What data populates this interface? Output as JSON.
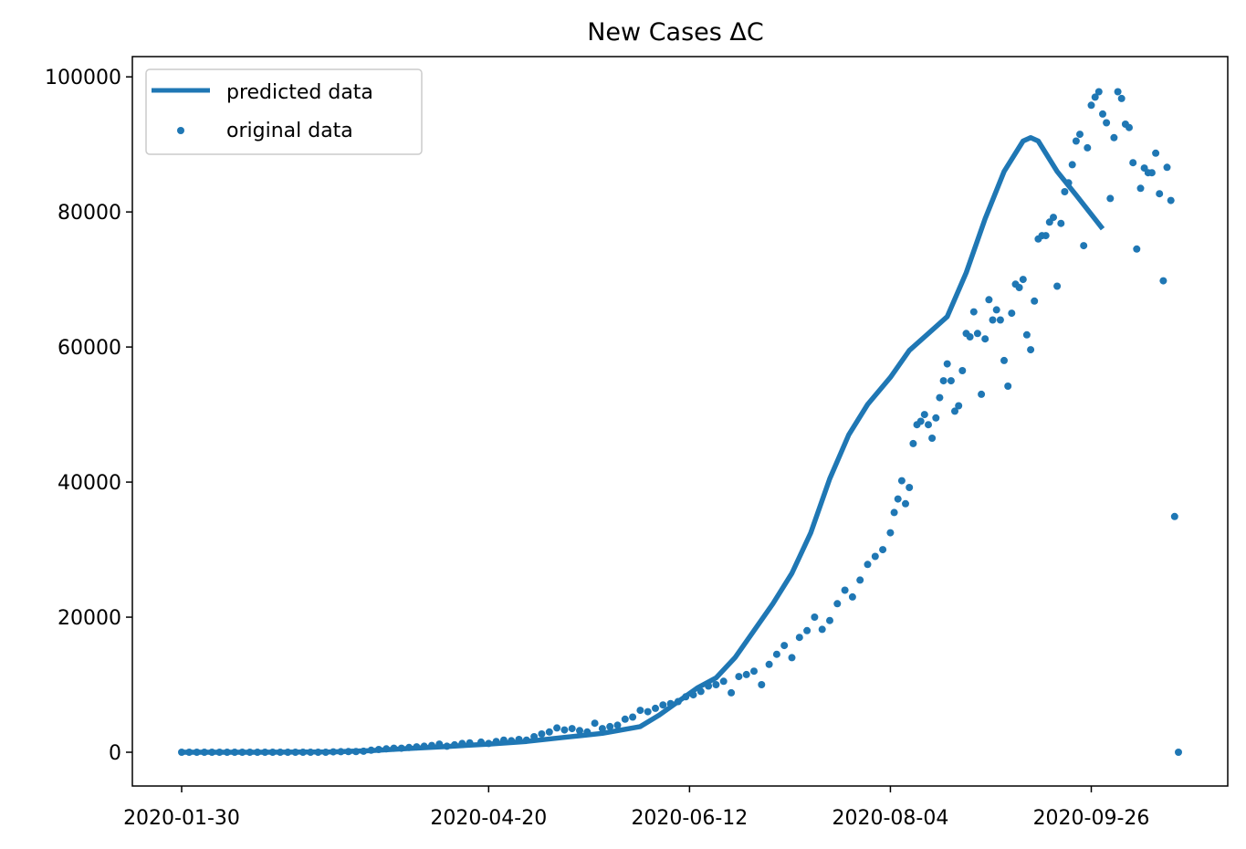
{
  "chart_data": {
    "type": "line",
    "title": "New Cases ΔC",
    "xlabel": "",
    "ylabel": "",
    "x_ticks": [
      "2020-01-30",
      "2020-04-20",
      "2020-06-12",
      "2020-08-04",
      "2020-09-26"
    ],
    "y_ticks": [
      0,
      20000,
      40000,
      60000,
      80000,
      100000
    ],
    "ylim": [
      -5000,
      103000
    ],
    "grid": false,
    "legend_position": "top-left",
    "colors": {
      "series": "#1f77b4"
    },
    "series": [
      {
        "name": "predicted data",
        "kind": "line",
        "points": [
          [
            "2020-01-30",
            0
          ],
          [
            "2020-02-19",
            0
          ],
          [
            "2020-03-10",
            50
          ],
          [
            "2020-03-20",
            250
          ],
          [
            "2020-03-30",
            550
          ],
          [
            "2020-04-09",
            850
          ],
          [
            "2020-04-20",
            1200
          ],
          [
            "2020-04-30",
            1600
          ],
          [
            "2020-05-10",
            2200
          ],
          [
            "2020-05-20",
            2800
          ],
          [
            "2020-05-30",
            3800
          ],
          [
            "2020-06-04",
            5500
          ],
          [
            "2020-06-09",
            7500
          ],
          [
            "2020-06-14",
            9500
          ],
          [
            "2020-06-19",
            11000
          ],
          [
            "2020-06-24",
            14000
          ],
          [
            "2020-06-29",
            18000
          ],
          [
            "2020-07-04",
            22000
          ],
          [
            "2020-07-09",
            26500
          ],
          [
            "2020-07-14",
            32500
          ],
          [
            "2020-07-19",
            40500
          ],
          [
            "2020-07-24",
            47000
          ],
          [
            "2020-07-29",
            51500
          ],
          [
            "2020-08-04",
            55500
          ],
          [
            "2020-08-09",
            59500
          ],
          [
            "2020-08-14",
            62000
          ],
          [
            "2020-08-19",
            64500
          ],
          [
            "2020-08-24",
            71000
          ],
          [
            "2020-08-29",
            79000
          ],
          [
            "2020-09-03",
            86000
          ],
          [
            "2020-09-08",
            90500
          ],
          [
            "2020-09-10",
            91000
          ],
          [
            "2020-09-12",
            90500
          ],
          [
            "2020-09-17",
            86000
          ],
          [
            "2020-09-22",
            82500
          ],
          [
            "2020-09-29",
            77500
          ]
        ]
      },
      {
        "name": "original data",
        "kind": "scatter",
        "points": [
          [
            "2020-01-30",
            0
          ],
          [
            "2020-02-01",
            0
          ],
          [
            "2020-02-03",
            0
          ],
          [
            "2020-02-05",
            0
          ],
          [
            "2020-02-07",
            0
          ],
          [
            "2020-02-09",
            0
          ],
          [
            "2020-02-11",
            0
          ],
          [
            "2020-02-13",
            0
          ],
          [
            "2020-02-15",
            0
          ],
          [
            "2020-02-17",
            0
          ],
          [
            "2020-02-19",
            0
          ],
          [
            "2020-02-21",
            0
          ],
          [
            "2020-02-23",
            0
          ],
          [
            "2020-02-25",
            0
          ],
          [
            "2020-02-27",
            0
          ],
          [
            "2020-02-29",
            0
          ],
          [
            "2020-03-02",
            0
          ],
          [
            "2020-03-04",
            0
          ],
          [
            "2020-03-06",
            0
          ],
          [
            "2020-03-08",
            0
          ],
          [
            "2020-03-10",
            50
          ],
          [
            "2020-03-12",
            80
          ],
          [
            "2020-03-14",
            100
          ],
          [
            "2020-03-16",
            100
          ],
          [
            "2020-03-18",
            150
          ],
          [
            "2020-03-20",
            300
          ],
          [
            "2020-03-22",
            400
          ],
          [
            "2020-03-24",
            500
          ],
          [
            "2020-03-26",
            600
          ],
          [
            "2020-03-28",
            600
          ],
          [
            "2020-03-30",
            700
          ],
          [
            "2020-04-01",
            800
          ],
          [
            "2020-04-03",
            900
          ],
          [
            "2020-04-05",
            1000
          ],
          [
            "2020-04-07",
            1200
          ],
          [
            "2020-04-09",
            900
          ],
          [
            "2020-04-11",
            1100
          ],
          [
            "2020-04-13",
            1300
          ],
          [
            "2020-04-15",
            1400
          ],
          [
            "2020-04-18",
            1500
          ],
          [
            "2020-04-20",
            1300
          ],
          [
            "2020-04-22",
            1600
          ],
          [
            "2020-04-24",
            1800
          ],
          [
            "2020-04-26",
            1700
          ],
          [
            "2020-04-28",
            1900
          ],
          [
            "2020-04-30",
            1800
          ],
          [
            "2020-05-02",
            2300
          ],
          [
            "2020-05-04",
            2700
          ],
          [
            "2020-05-06",
            3000
          ],
          [
            "2020-05-08",
            3600
          ],
          [
            "2020-05-10",
            3300
          ],
          [
            "2020-05-12",
            3500
          ],
          [
            "2020-05-14",
            3200
          ],
          [
            "2020-05-16",
            3000
          ],
          [
            "2020-05-18",
            4300
          ],
          [
            "2020-05-20",
            3500
          ],
          [
            "2020-05-22",
            3800
          ],
          [
            "2020-05-24",
            4000
          ],
          [
            "2020-05-26",
            4900
          ],
          [
            "2020-05-28",
            5200
          ],
          [
            "2020-05-30",
            6200
          ],
          [
            "2020-06-01",
            6000
          ],
          [
            "2020-06-03",
            6500
          ],
          [
            "2020-06-05",
            7000
          ],
          [
            "2020-06-07",
            7200
          ],
          [
            "2020-06-09",
            7500
          ],
          [
            "2020-06-11",
            8200
          ],
          [
            "2020-06-13",
            8500
          ],
          [
            "2020-06-15",
            9000
          ],
          [
            "2020-06-17",
            9800
          ],
          [
            "2020-06-19",
            10000
          ],
          [
            "2020-06-21",
            10500
          ],
          [
            "2020-06-23",
            8800
          ],
          [
            "2020-06-25",
            11200
          ],
          [
            "2020-06-27",
            11500
          ],
          [
            "2020-06-29",
            12000
          ],
          [
            "2020-07-01",
            10000
          ],
          [
            "2020-07-03",
            13000
          ],
          [
            "2020-07-05",
            14500
          ],
          [
            "2020-07-07",
            15800
          ],
          [
            "2020-07-09",
            14000
          ],
          [
            "2020-07-11",
            17000
          ],
          [
            "2020-07-13",
            18000
          ],
          [
            "2020-07-15",
            20000
          ],
          [
            "2020-07-17",
            18200
          ],
          [
            "2020-07-19",
            19500
          ],
          [
            "2020-07-21",
            22000
          ],
          [
            "2020-07-23",
            24000
          ],
          [
            "2020-07-25",
            23000
          ],
          [
            "2020-07-27",
            25500
          ],
          [
            "2020-07-29",
            27800
          ],
          [
            "2020-07-31",
            29000
          ],
          [
            "2020-08-02",
            30000
          ],
          [
            "2020-08-04",
            32500
          ],
          [
            "2020-08-05",
            35500
          ],
          [
            "2020-08-06",
            37500
          ],
          [
            "2020-08-07",
            40200
          ],
          [
            "2020-08-08",
            36800
          ],
          [
            "2020-08-09",
            39200
          ],
          [
            "2020-08-10",
            45700
          ],
          [
            "2020-08-11",
            48500
          ],
          [
            "2020-08-12",
            49000
          ],
          [
            "2020-08-13",
            50000
          ],
          [
            "2020-08-14",
            48500
          ],
          [
            "2020-08-15",
            46500
          ],
          [
            "2020-08-16",
            49500
          ],
          [
            "2020-08-17",
            52500
          ],
          [
            "2020-08-18",
            55000
          ],
          [
            "2020-08-19",
            57500
          ],
          [
            "2020-08-20",
            55000
          ],
          [
            "2020-08-21",
            50500
          ],
          [
            "2020-08-22",
            51300
          ],
          [
            "2020-08-23",
            56500
          ],
          [
            "2020-08-24",
            62000
          ],
          [
            "2020-08-25",
            61500
          ],
          [
            "2020-08-26",
            65200
          ],
          [
            "2020-08-27",
            62000
          ],
          [
            "2020-08-28",
            53000
          ],
          [
            "2020-08-29",
            61200
          ],
          [
            "2020-08-30",
            67000
          ],
          [
            "2020-08-31",
            64000
          ],
          [
            "2020-09-01",
            65500
          ],
          [
            "2020-09-02",
            64000
          ],
          [
            "2020-09-03",
            58000
          ],
          [
            "2020-09-04",
            54200
          ],
          [
            "2020-09-05",
            65000
          ],
          [
            "2020-09-06",
            69300
          ],
          [
            "2020-09-07",
            68800
          ],
          [
            "2020-09-08",
            70000
          ],
          [
            "2020-09-09",
            61800
          ],
          [
            "2020-09-10",
            59600
          ],
          [
            "2020-09-11",
            66800
          ],
          [
            "2020-09-12",
            76000
          ],
          [
            "2020-09-13",
            76500
          ],
          [
            "2020-09-14",
            76500
          ],
          [
            "2020-09-15",
            78500
          ],
          [
            "2020-09-16",
            79200
          ],
          [
            "2020-09-17",
            69000
          ],
          [
            "2020-09-18",
            78300
          ],
          [
            "2020-09-19",
            83000
          ],
          [
            "2020-09-20",
            84300
          ],
          [
            "2020-09-21",
            87000
          ],
          [
            "2020-09-22",
            90500
          ],
          [
            "2020-09-23",
            91500
          ],
          [
            "2020-09-24",
            75000
          ],
          [
            "2020-09-25",
            89500
          ],
          [
            "2020-09-26",
            95800
          ],
          [
            "2020-09-27",
            97000
          ],
          [
            "2020-09-28",
            97800
          ],
          [
            "2020-09-29",
            94500
          ],
          [
            "2020-09-30",
            93200
          ],
          [
            "2020-10-01",
            82000
          ],
          [
            "2020-10-02",
            91000
          ],
          [
            "2020-10-03",
            97800
          ],
          [
            "2020-10-04",
            96800
          ],
          [
            "2020-10-05",
            93000
          ],
          [
            "2020-10-06",
            92500
          ],
          [
            "2020-10-07",
            87300
          ],
          [
            "2020-10-08",
            74500
          ],
          [
            "2020-10-09",
            83500
          ],
          [
            "2020-10-10",
            86500
          ],
          [
            "2020-10-11",
            85800
          ],
          [
            "2020-10-12",
            85800
          ],
          [
            "2020-10-13",
            88700
          ],
          [
            "2020-10-14",
            82700
          ],
          [
            "2020-10-15",
            69800
          ],
          [
            "2020-10-16",
            86600
          ],
          [
            "2020-10-17",
            81700
          ],
          [
            "2020-10-18",
            34900
          ],
          [
            "2020-10-19",
            0
          ]
        ]
      }
    ]
  }
}
